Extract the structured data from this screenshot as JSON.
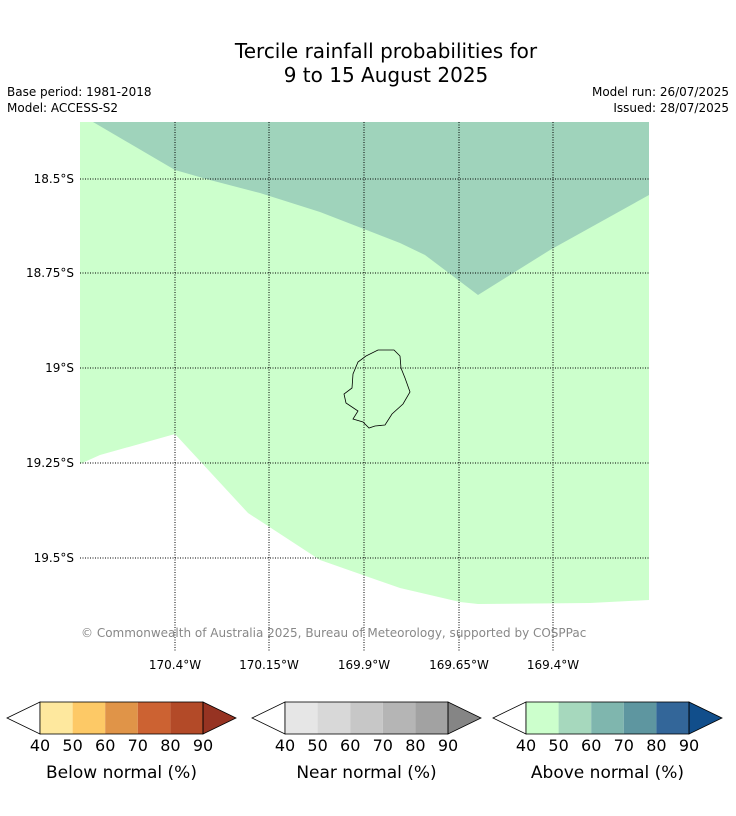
{
  "title_line1": "Tercile rainfall probabilities for",
  "title_line2": "9 to 15 August 2025",
  "base_period": "Base period: 1981-2018",
  "model": "Model: ACCESS-S2",
  "model_run": "Model run: 26/07/2025",
  "issued": "Issued: 28/07/2025",
  "copyright": "© Commonwealth of Australia 2025, Bureau of Meteorology, supported by COSPPac",
  "lat_labels": [
    "18.5°S",
    "18.75°S",
    "19°S",
    "19.25°S",
    "19.5°S"
  ],
  "lon_labels": [
    "170.4°W",
    "170.15°W",
    "169.9°W",
    "169.65°W",
    "169.4°W"
  ],
  "colorbars": [
    {
      "label": "Below normal (%)",
      "ticks": [
        "40",
        "50",
        "60",
        "70",
        "80",
        "90"
      ],
      "colors": [
        "#ffffff",
        "#fee89e",
        "#fdc966",
        "#e09448",
        "#cc6232",
        "#b34a28",
        "#963322"
      ]
    },
    {
      "label": "Near normal (%)",
      "ticks": [
        "40",
        "50",
        "60",
        "70",
        "80",
        "90"
      ],
      "colors": [
        "#ffffff",
        "#e6e6e6",
        "#d8d8d8",
        "#c7c7c7",
        "#b5b5b5",
        "#a2a2a2",
        "#858585"
      ]
    },
    {
      "label": "Above normal (%)",
      "ticks": [
        "40",
        "50",
        "60",
        "70",
        "80",
        "90"
      ],
      "colors": [
        "#ffffff",
        "#ccffcc",
        "#a6d8bd",
        "#7fb6ae",
        "#5e96a0",
        "#336699",
        "#114e8b"
      ]
    }
  ],
  "colors": {
    "above_40_50": "#ccffcc",
    "above_50_60": "#9fd3bb"
  }
}
